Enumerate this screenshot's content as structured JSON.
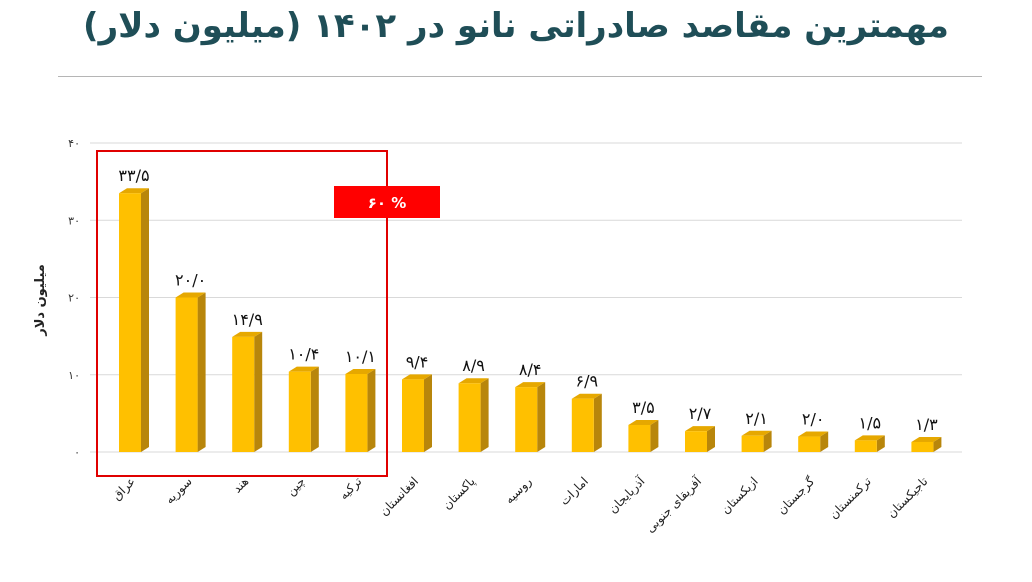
{
  "page": {
    "title": "مهمترین مقاصد صادراتی نانو در ۱۴۰۲ (میلیون دلار)"
  },
  "colors": {
    "bar_front": "#FFC000",
    "bar_side": "#B8860B",
    "bar_top": "#E6A800",
    "highlight": "#E00000",
    "title": "#1f4e57"
  },
  "annotation": {
    "text": "% ۶۰"
  },
  "chart_data": {
    "type": "bar",
    "title": "مهمترین مقاصد صادراتی نانو در ۱۴۰۲ (میلیون دلار)",
    "ylabel": "میلیون دلار",
    "xlabel": "",
    "ylim": [
      0,
      40
    ],
    "yticks": [
      0,
      10,
      20,
      30,
      40
    ],
    "ytick_labels": [
      "۰",
      "۱۰",
      "۲۰",
      "۳۰",
      "۴۰"
    ],
    "grid": true,
    "categories": [
      "عراق",
      "سوریه",
      "هند",
      "چین",
      "ترکیه",
      "افغانستان",
      "پاکستان",
      "روسیه",
      "امارات",
      "آذربایجان",
      "آفریقای جنوبی",
      "ازبکستان",
      "گرجستان",
      "ترکمنستان",
      "تاجیکستان"
    ],
    "values": [
      33.5,
      20.0,
      14.9,
      10.4,
      10.1,
      9.4,
      8.9,
      8.4,
      6.9,
      3.5,
      2.7,
      2.1,
      2.0,
      1.5,
      1.3
    ],
    "value_labels": [
      "۳۳/۵",
      "۲۰/۰",
      "۱۴/۹",
      "۱۰/۴",
      "۱۰/۱",
      "۹/۴",
      "۸/۹",
      "۸/۴",
      "۶/۹",
      "۳/۵",
      "۲/۷",
      "۲/۱",
      "۲/۰",
      "۱/۵",
      "۱/۳"
    ],
    "highlight_group": [
      "عراق",
      "سوریه",
      "هند",
      "چین",
      "ترکیه"
    ]
  }
}
